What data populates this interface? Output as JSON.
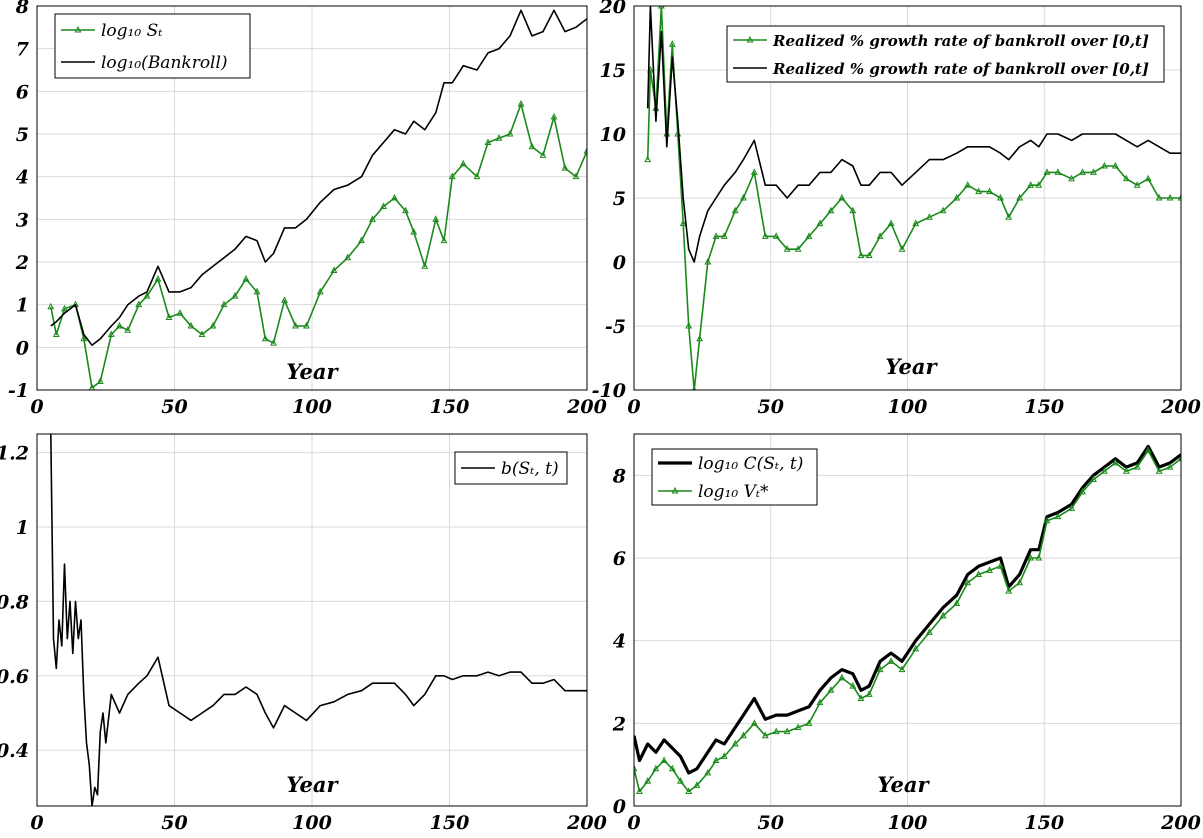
{
  "chart_data": [
    {
      "type": "line",
      "xlabel": "Year",
      "xlim": [
        0,
        200
      ],
      "ylim": [
        -1,
        8
      ],
      "xticks": [
        "0",
        "50",
        "100",
        "150",
        "200"
      ],
      "yticks": [
        "-1",
        "0",
        "1",
        "2",
        "3",
        "4",
        "5",
        "6",
        "7",
        "8"
      ],
      "grid": true,
      "legend_position": "top-left",
      "series": [
        {
          "name": "log10 S_t",
          "legend_label": "log₁₀ Sₜ",
          "color": "#1a8a1a",
          "marker": "triangle",
          "x": [
            5,
            7,
            10,
            14,
            17,
            20,
            23,
            27,
            30,
            33,
            37,
            40,
            44,
            48,
            52,
            56,
            60,
            64,
            68,
            72,
            76,
            80,
            83,
            86,
            90,
            94,
            98,
            103,
            108,
            113,
            118,
            122,
            126,
            130,
            134,
            137,
            141,
            145,
            148,
            151,
            155,
            160,
            164,
            168,
            172,
            176,
            180,
            184,
            188,
            192,
            196,
            200
          ],
          "y": [
            0.95,
            0.3,
            0.9,
            1.0,
            0.2,
            -0.95,
            -0.8,
            0.3,
            0.5,
            0.4,
            1.0,
            1.2,
            1.6,
            0.7,
            0.8,
            0.5,
            0.3,
            0.5,
            1.0,
            1.2,
            1.6,
            1.3,
            0.2,
            0.1,
            1.1,
            0.5,
            0.5,
            1.3,
            1.8,
            2.1,
            2.5,
            3.0,
            3.3,
            3.5,
            3.2,
            2.7,
            1.9,
            3.0,
            2.5,
            4.0,
            4.3,
            4.0,
            4.8,
            4.9,
            5.0,
            5.7,
            4.7,
            4.5,
            5.4,
            4.2,
            4.0,
            4.6
          ]
        },
        {
          "name": "log10(Bankroll)",
          "legend_label": "log₁₀(Bankroll)",
          "color": "#000000",
          "x": [
            5,
            7,
            10,
            14,
            17,
            20,
            23,
            27,
            30,
            33,
            37,
            40,
            44,
            48,
            52,
            56,
            60,
            64,
            68,
            72,
            76,
            80,
            83,
            86,
            90,
            94,
            98,
            103,
            108,
            113,
            118,
            122,
            126,
            130,
            134,
            137,
            141,
            145,
            148,
            151,
            155,
            160,
            164,
            168,
            172,
            176,
            180,
            184,
            188,
            192,
            196,
            200
          ],
          "y": [
            0.5,
            0.6,
            0.8,
            1.0,
            0.3,
            0.05,
            0.2,
            0.5,
            0.7,
            1.0,
            1.2,
            1.3,
            1.9,
            1.3,
            1.3,
            1.4,
            1.7,
            1.9,
            2.1,
            2.3,
            2.6,
            2.5,
            2.0,
            2.2,
            2.8,
            2.8,
            3.0,
            3.4,
            3.7,
            3.8,
            4.0,
            4.5,
            4.8,
            5.1,
            5.0,
            5.3,
            5.1,
            5.5,
            6.2,
            6.2,
            6.6,
            6.5,
            6.9,
            7.0,
            7.3,
            7.9,
            7.3,
            7.4,
            7.9,
            7.4,
            7.5,
            7.7
          ]
        }
      ]
    },
    {
      "type": "line",
      "xlabel": "Year",
      "xlim": [
        0,
        200
      ],
      "ylim": [
        -10,
        20
      ],
      "xticks": [
        "0",
        "50",
        "100",
        "150",
        "200"
      ],
      "yticks": [
        "-10",
        "-5",
        "0",
        "5",
        "10",
        "15",
        "20"
      ],
      "grid": true,
      "legend_position": "top-right",
      "series": [
        {
          "name": "Realized % growth rate of bankroll over [0,t]",
          "legend_label": "Realized % growth rate of bankroll over [0,t]",
          "color": "#1a8a1a",
          "marker": "triangle",
          "x": [
            5,
            6,
            8,
            10,
            12,
            14,
            16,
            18,
            20,
            22,
            24,
            27,
            30,
            33,
            37,
            40,
            44,
            48,
            52,
            56,
            60,
            64,
            68,
            72,
            76,
            80,
            83,
            86,
            90,
            94,
            98,
            103,
            108,
            113,
            118,
            122,
            126,
            130,
            134,
            137,
            141,
            145,
            148,
            151,
            155,
            160,
            164,
            168,
            172,
            176,
            180,
            184,
            188,
            192,
            196,
            200
          ],
          "y": [
            8,
            15,
            12,
            20,
            10,
            17,
            10,
            3,
            -5,
            -10,
            -6,
            0,
            2,
            2,
            4,
            5,
            7,
            2,
            2,
            1,
            1,
            2,
            3,
            4,
            5,
            4,
            0.5,
            0.5,
            2,
            3,
            1,
            3,
            3.5,
            4,
            5,
            6,
            5.5,
            5.5,
            5,
            3.5,
            5,
            6,
            6,
            7,
            7,
            6.5,
            7,
            7,
            7.5,
            7.5,
            6.5,
            6,
            6.5,
            5,
            5,
            5
          ]
        },
        {
          "name": "Realized % growth rate of bankroll over [0,t]",
          "legend_label": "Realized % growth rate of bankroll over [0,t]",
          "color": "#000000",
          "x": [
            5,
            6,
            8,
            10,
            12,
            14,
            16,
            18,
            20,
            22,
            24,
            27,
            30,
            33,
            37,
            40,
            44,
            48,
            52,
            56,
            60,
            64,
            68,
            72,
            76,
            80,
            83,
            86,
            90,
            94,
            98,
            103,
            108,
            113,
            118,
            122,
            126,
            130,
            134,
            137,
            141,
            145,
            148,
            151,
            155,
            160,
            164,
            168,
            172,
            176,
            180,
            184,
            188,
            192,
            196,
            200
          ],
          "y": [
            12,
            20,
            11,
            18,
            9,
            16,
            11,
            5,
            1,
            0,
            2,
            4,
            5,
            6,
            7,
            8,
            9.5,
            6,
            6,
            5,
            6,
            6,
            7,
            7,
            8,
            7.5,
            6,
            6,
            7,
            7,
            6,
            7,
            8,
            8,
            8.5,
            9,
            9,
            9,
            8.5,
            8,
            9,
            9.5,
            9,
            10,
            10,
            9.5,
            10,
            10,
            10,
            10,
            9.5,
            9,
            9.5,
            9,
            8.5,
            8.5
          ]
        }
      ]
    },
    {
      "type": "line",
      "xlabel": "Year",
      "xlim": [
        0,
        200
      ],
      "ylim": [
        0.25,
        1.25
      ],
      "xticks": [
        "0",
        "50",
        "100",
        "150",
        "200"
      ],
      "yticks": [
        "0.4",
        "0.6",
        "0.8",
        "1",
        "1.2"
      ],
      "grid": true,
      "legend_position": "top-right",
      "series": [
        {
          "name": "b(S_t, t)",
          "legend_label": "b(Sₜ, t)",
          "color": "#000000",
          "x": [
            5,
            6,
            7,
            8,
            9,
            10,
            11,
            12,
            13,
            14,
            15,
            16,
            17,
            18,
            19,
            20,
            21,
            22,
            23,
            24,
            25,
            27,
            30,
            33,
            37,
            40,
            44,
            48,
            52,
            56,
            60,
            64,
            68,
            72,
            76,
            80,
            83,
            86,
            90,
            94,
            98,
            103,
            108,
            113,
            118,
            122,
            126,
            130,
            134,
            137,
            141,
            145,
            148,
            151,
            155,
            160,
            164,
            168,
            172,
            176,
            180,
            184,
            188,
            192,
            196,
            200
          ],
          "y": [
            1.25,
            0.7,
            0.62,
            0.75,
            0.68,
            0.9,
            0.7,
            0.8,
            0.66,
            0.8,
            0.7,
            0.75,
            0.55,
            0.42,
            0.36,
            0.25,
            0.3,
            0.28,
            0.45,
            0.5,
            0.42,
            0.55,
            0.5,
            0.55,
            0.58,
            0.6,
            0.65,
            0.52,
            0.5,
            0.48,
            0.5,
            0.52,
            0.55,
            0.55,
            0.57,
            0.55,
            0.5,
            0.46,
            0.52,
            0.5,
            0.48,
            0.52,
            0.53,
            0.55,
            0.56,
            0.58,
            0.58,
            0.58,
            0.55,
            0.52,
            0.55,
            0.6,
            0.6,
            0.59,
            0.6,
            0.6,
            0.61,
            0.6,
            0.61,
            0.61,
            0.58,
            0.58,
            0.59,
            0.56,
            0.56,
            0.56
          ]
        }
      ]
    },
    {
      "type": "line",
      "xlabel": "Year",
      "xlim": [
        0,
        200
      ],
      "ylim": [
        0,
        9
      ],
      "xticks": [
        "0",
        "50",
        "100",
        "150",
        "200"
      ],
      "yticks": [
        "0",
        "2",
        "4",
        "6",
        "8"
      ],
      "grid": true,
      "legend_position": "top-left",
      "series": [
        {
          "name": "log10 C(S_t, t)",
          "legend_label": "log₁₀ C(Sₜ, t)",
          "color": "#000000",
          "bold": true,
          "x": [
            0,
            2,
            5,
            8,
            11,
            14,
            17,
            20,
            23,
            27,
            30,
            33,
            37,
            40,
            44,
            48,
            52,
            56,
            60,
            64,
            68,
            72,
            76,
            80,
            83,
            86,
            90,
            94,
            98,
            103,
            108,
            113,
            118,
            122,
            126,
            130,
            134,
            137,
            141,
            145,
            148,
            151,
            155,
            160,
            164,
            168,
            172,
            176,
            180,
            184,
            188,
            192,
            196,
            200
          ],
          "y": [
            1.7,
            1.1,
            1.5,
            1.3,
            1.6,
            1.4,
            1.2,
            0.8,
            0.9,
            1.3,
            1.6,
            1.5,
            1.9,
            2.2,
            2.6,
            2.1,
            2.2,
            2.2,
            2.3,
            2.4,
            2.8,
            3.1,
            3.3,
            3.2,
            2.8,
            2.9,
            3.5,
            3.7,
            3.5,
            4.0,
            4.4,
            4.8,
            5.1,
            5.6,
            5.8,
            5.9,
            6.0,
            5.3,
            5.6,
            6.2,
            6.2,
            7.0,
            7.1,
            7.3,
            7.7,
            8.0,
            8.2,
            8.4,
            8.2,
            8.3,
            8.7,
            8.2,
            8.3,
            8.5
          ]
        },
        {
          "name": "log10 V_t*",
          "legend_label": "log₁₀ Vₜ*",
          "color": "#1a8a1a",
          "marker": "triangle",
          "x": [
            0,
            2,
            5,
            8,
            11,
            14,
            17,
            20,
            23,
            27,
            30,
            33,
            37,
            40,
            44,
            48,
            52,
            56,
            60,
            64,
            68,
            72,
            76,
            80,
            83,
            86,
            90,
            94,
            98,
            103,
            108,
            113,
            118,
            122,
            126,
            130,
            134,
            137,
            141,
            145,
            148,
            151,
            155,
            160,
            164,
            168,
            172,
            176,
            180,
            184,
            188,
            192,
            196,
            200
          ],
          "y": [
            0.9,
            0.35,
            0.6,
            0.9,
            1.1,
            0.9,
            0.6,
            0.35,
            0.5,
            0.8,
            1.1,
            1.2,
            1.5,
            1.7,
            2.0,
            1.7,
            1.8,
            1.8,
            1.9,
            2.0,
            2.5,
            2.8,
            3.1,
            2.9,
            2.6,
            2.7,
            3.3,
            3.5,
            3.3,
            3.8,
            4.2,
            4.6,
            4.9,
            5.4,
            5.6,
            5.7,
            5.8,
            5.2,
            5.4,
            6.0,
            6.0,
            6.9,
            7.0,
            7.2,
            7.6,
            7.9,
            8.1,
            8.3,
            8.1,
            8.2,
            8.6,
            8.1,
            8.2,
            8.4
          ]
        }
      ]
    }
  ],
  "colors": {
    "green": "#1a8a1a",
    "black": "#000000",
    "grid": "#d9d9d9"
  }
}
